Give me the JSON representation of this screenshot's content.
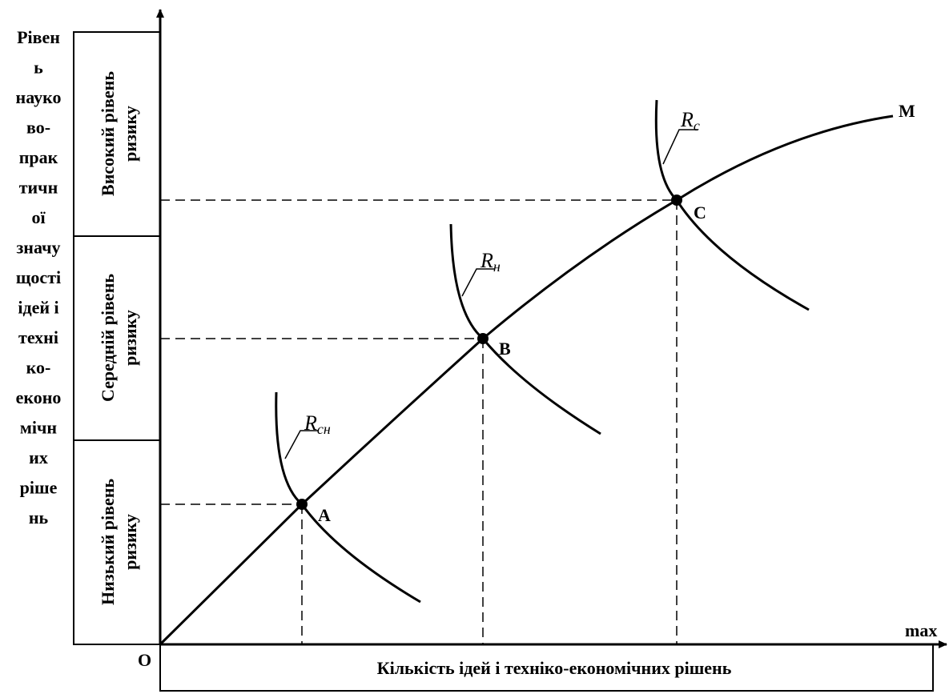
{
  "y_axis_label": [
    "Рівен",
    "ь",
    "науко",
    "во-",
    "прак",
    "тичн",
    "ої",
    "значу",
    "щості",
    "ідей і",
    "техні",
    "ко-",
    "еконо",
    "мічн",
    "их",
    "ріше",
    "нь"
  ],
  "levels": [
    {
      "lines": [
        "Високий рівень",
        "ризику"
      ]
    },
    {
      "lines": [
        "Середній рівень",
        "ризику"
      ]
    },
    {
      "lines": [
        "Низький рівень",
        "ризику"
      ]
    }
  ],
  "x_axis_label": "Кількість ідей і техніко-економічних рішень",
  "origin": "O",
  "x_max": "max",
  "points": {
    "A": "A",
    "B": "B",
    "C": "C",
    "M": "M"
  },
  "risk_curves": [
    {
      "letter": "R",
      "sub": "сн"
    },
    {
      "letter": "R",
      "sub": "н"
    },
    {
      "letter": "R",
      "sub": "с"
    }
  ]
}
